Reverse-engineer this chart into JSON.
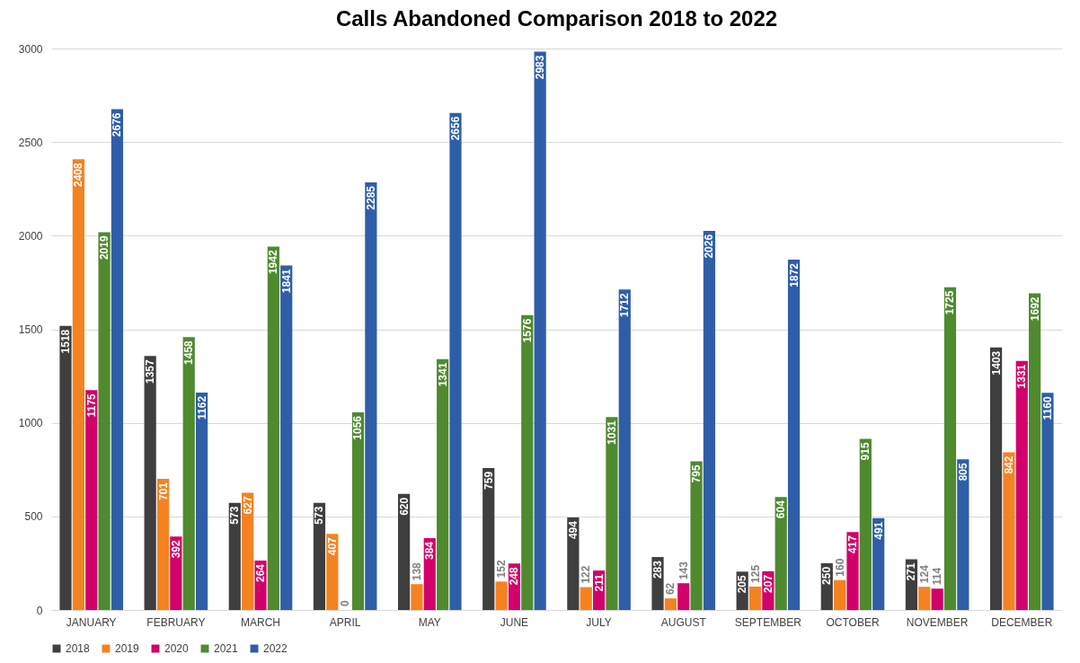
{
  "chart_data": {
    "type": "bar",
    "title": "Calls Abandoned Comparison 2018 to 2022",
    "categories": [
      "JANUARY",
      "FEBRUARY",
      "MARCH",
      "APRIL",
      "MAY",
      "JUNE",
      "JULY",
      "AUGUST",
      "SEPTEMBER",
      "OCTOBER",
      "NOVEMBER",
      "DECEMBER"
    ],
    "series": [
      {
        "name": "2018",
        "color": "#3f3f3f",
        "values": [
          1518,
          1357,
          573,
          573,
          620,
          759,
          494,
          283,
          205,
          250,
          271,
          1403
        ]
      },
      {
        "name": "2019",
        "color": "#f58220",
        "values": [
          2408,
          701,
          627,
          407,
          138,
          152,
          122,
          62,
          125,
          160,
          124,
          842
        ]
      },
      {
        "name": "2020",
        "color": "#d1006b",
        "values": [
          1175,
          392,
          264,
          0,
          384,
          248,
          211,
          143,
          207,
          417,
          114,
          1331
        ]
      },
      {
        "name": "2021",
        "color": "#4f8a2f",
        "values": [
          2019,
          1458,
          1942,
          1056,
          1341,
          1576,
          1031,
          795,
          604,
          915,
          1725,
          1692
        ]
      },
      {
        "name": "2022",
        "color": "#2f5ea8",
        "values": [
          2676,
          1162,
          1841,
          2285,
          2656,
          2983,
          1712,
          2026,
          1872,
          491,
          805,
          1160
        ]
      }
    ],
    "ylim": [
      0,
      3000
    ],
    "yticks": [
      0,
      500,
      1000,
      1500,
      2000,
      2500,
      3000
    ],
    "grid": "y",
    "legend": "bottom",
    "data_labels": true
  }
}
